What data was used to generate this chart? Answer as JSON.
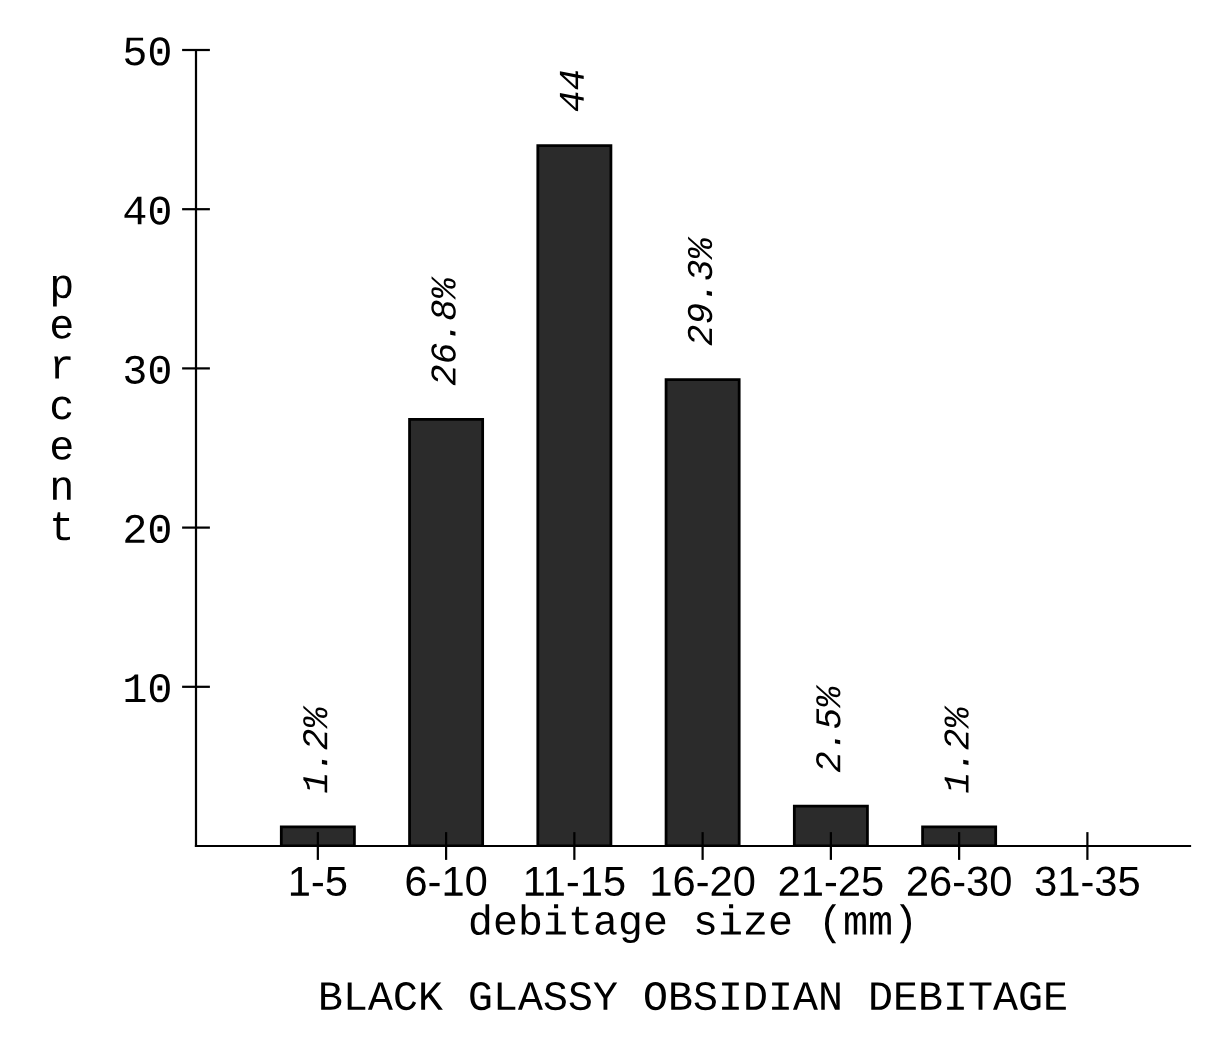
{
  "chart_data": {
    "type": "bar",
    "title": "BLACK GLASSY OBSIDIAN DEBITAGE",
    "xlabel": "debitage size (mm)",
    "ylabel": "percent",
    "categories": [
      "1-5",
      "6-10",
      "11-15",
      "16-20",
      "21-25",
      "26-30",
      "31-35"
    ],
    "values": [
      1.2,
      26.8,
      44,
      29.3,
      2.5,
      1.2,
      null
    ],
    "value_labels": [
      "1.2%",
      "26.8%",
      "44",
      "29.3%",
      "2.5%",
      "1.2%",
      null
    ],
    "color": "#2b2b2b",
    "ylim": [
      0,
      50
    ],
    "yticks": [
      10,
      20,
      30,
      40,
      50
    ],
    "grid": false
  }
}
